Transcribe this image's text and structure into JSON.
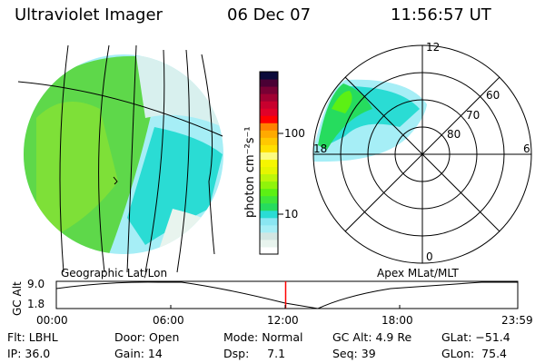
{
  "header": {
    "instrument": "Ultraviolet Imager",
    "date": "06 Dec 07",
    "time": "11:56:57 UT"
  },
  "colorbar": {
    "label": "photon cm⁻²s⁻¹",
    "tick_labels": [
      "100",
      "10"
    ],
    "colors": [
      "#ffffff",
      "#e8f4ee",
      "#d2e6e2",
      "#a6eef6",
      "#8ae6f2",
      "#2adcd4",
      "#26dc5e",
      "#3ee63a",
      "#5cf014",
      "#90f40a",
      "#bcf60a",
      "#e6f600",
      "#f6f600",
      "#fcfc80",
      "#ffe000",
      "#ffc800",
      "#ffaa00",
      "#ff8200",
      "#ff0000",
      "#e00028",
      "#c8002e",
      "#a00032",
      "#780034",
      "#4a0034",
      "#0a0a3a"
    ]
  },
  "left_panel": {
    "caption": "Geographic Lat/Lon"
  },
  "right_panel": {
    "caption": "Apex MLat/MLT",
    "mlt_labels": {
      "top": "12",
      "right": "6",
      "bottom": "0",
      "left": "18"
    },
    "lat_labels": [
      "60",
      "70",
      "80"
    ]
  },
  "timeline": {
    "ylabel": "GC Alt",
    "y_ticks": [
      "9.0",
      "1.8"
    ],
    "x_ticks": [
      "00:00",
      "06:00",
      "12:00",
      "18:00",
      "23:59"
    ],
    "current_time_fraction": 0.497,
    "marker_color": "#ff0000"
  },
  "info": {
    "flt": "Flt: LBHL",
    "ip": "IP: 36.0",
    "door": "Door: Open",
    "gain": "Gain: 14",
    "mode": "Mode: Normal",
    "dsp": "Dsp:     7.1",
    "gc_alt": "GC Alt: 4.9 Re",
    "seq": "Seq: 39",
    "glat": "GLat: −51.4",
    "glon": "GLon:  75.4"
  }
}
